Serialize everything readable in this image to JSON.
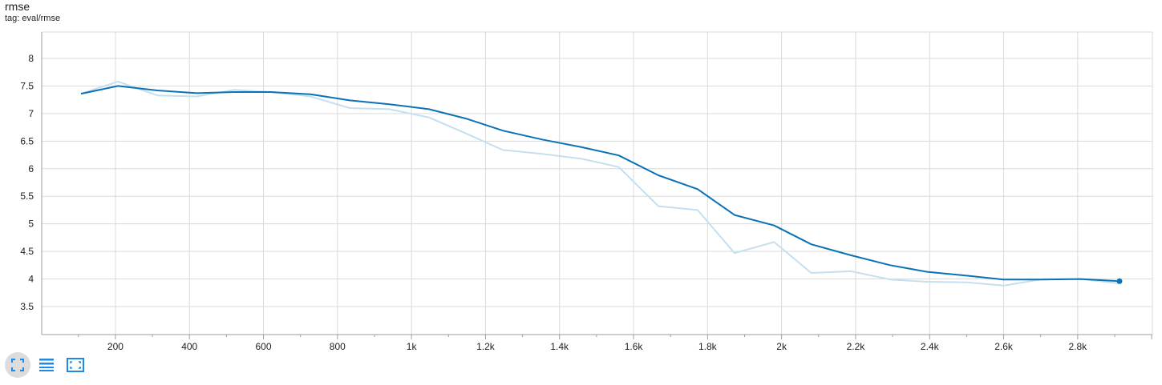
{
  "header": {
    "title": "rmse",
    "tag": "tag: eval/rmse"
  },
  "colors": {
    "smoothed": "#0b72b5",
    "raw": "#c4dfef",
    "grid": "#dadada",
    "axis": "#9e9e9e",
    "toolbar_icon": "#1e88e5"
  },
  "toolbar": {
    "buttons": [
      {
        "name": "fit-domain-icon",
        "active": true
      },
      {
        "name": "toggle-log-scale-icon",
        "active": false
      },
      {
        "name": "expand-chart-icon",
        "active": false
      }
    ]
  },
  "chart_data": {
    "type": "line",
    "title": "rmse",
    "subtitle": "tag: eval/rmse",
    "xlabel": "",
    "ylabel": "",
    "xlim": [
      0,
      3000
    ],
    "ylim": [
      3,
      8.5
    ],
    "x_ticks": [
      200,
      400,
      600,
      800,
      1000,
      1200,
      1400,
      1600,
      1800,
      2000,
      2200,
      2400,
      2600,
      2800
    ],
    "x_tick_labels": [
      "200",
      "400",
      "600",
      "800",
      "1k",
      "1.2k",
      "1.4k",
      "1.6k",
      "1.8k",
      "2k",
      "2.2k",
      "2.4k",
      "2.6k",
      "2.8k"
    ],
    "y_ticks": [
      3.5,
      4,
      4.5,
      5,
      5.5,
      6,
      6.5,
      7,
      7.5,
      8
    ],
    "y_tick_labels": [
      "3.5",
      "4",
      "4.5",
      "5",
      "5.5",
      "6",
      "6.5",
      "7",
      "7.5",
      "8"
    ],
    "grid": true,
    "series": [
      {
        "role": "raw",
        "x": [
          107,
          207,
          313,
          420,
          520,
          620,
          727,
          833,
          940,
          1047,
          1147,
          1247,
          1353,
          1460,
          1560,
          1667,
          1773,
          1873,
          1980,
          2080,
          2187,
          2293,
          2393,
          2500,
          2600,
          2707,
          2807,
          2913
        ],
        "values": [
          7.36,
          7.58,
          7.33,
          7.31,
          7.43,
          7.39,
          7.31,
          7.1,
          7.08,
          6.93,
          6.64,
          6.34,
          6.27,
          6.18,
          6.03,
          5.32,
          5.25,
          4.47,
          4.67,
          4.11,
          4.14,
          3.99,
          3.95,
          3.94,
          3.88,
          4.0,
          4.0,
          3.92
        ]
      },
      {
        "role": "smoothed",
        "x": [
          107,
          207,
          313,
          420,
          520,
          620,
          727,
          833,
          940,
          1047,
          1147,
          1247,
          1353,
          1460,
          1560,
          1667,
          1773,
          1873,
          1980,
          2080,
          2187,
          2293,
          2393,
          2500,
          2600,
          2707,
          2807,
          2913
        ],
        "values": [
          7.36,
          7.5,
          7.42,
          7.37,
          7.39,
          7.39,
          7.35,
          7.24,
          7.17,
          7.08,
          6.91,
          6.69,
          6.53,
          6.39,
          6.24,
          5.88,
          5.63,
          5.16,
          4.97,
          4.63,
          4.43,
          4.25,
          4.13,
          4.06,
          3.99,
          3.99,
          4.0,
          3.96
        ]
      }
    ]
  }
}
